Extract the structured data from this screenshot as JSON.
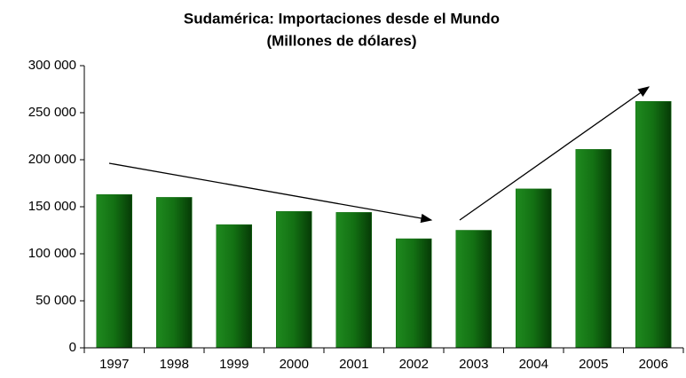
{
  "chart_data": {
    "type": "bar",
    "title": "Sudamérica: Importaciones desde el Mundo",
    "subtitle": "(Millones de dólares)",
    "categories": [
      "1997",
      "1998",
      "1999",
      "2000",
      "2001",
      "2002",
      "2003",
      "2004",
      "2005",
      "2006"
    ],
    "values": [
      163000,
      160000,
      131000,
      145000,
      144000,
      116000,
      125000,
      169000,
      211000,
      262000
    ],
    "color": "#137013",
    "ylim": [
      0,
      300000
    ],
    "yticks": [
      {
        "value": 0,
        "label": "0"
      },
      {
        "value": 50000,
        "label": "50 000"
      },
      {
        "value": 100000,
        "label": "100 000"
      },
      {
        "value": 150000,
        "label": "150 000"
      },
      {
        "value": 200000,
        "label": "200 000"
      },
      {
        "value": 250000,
        "label": "250 000"
      },
      {
        "value": 300000,
        "label": "300 000"
      }
    ],
    "grid": false
  }
}
